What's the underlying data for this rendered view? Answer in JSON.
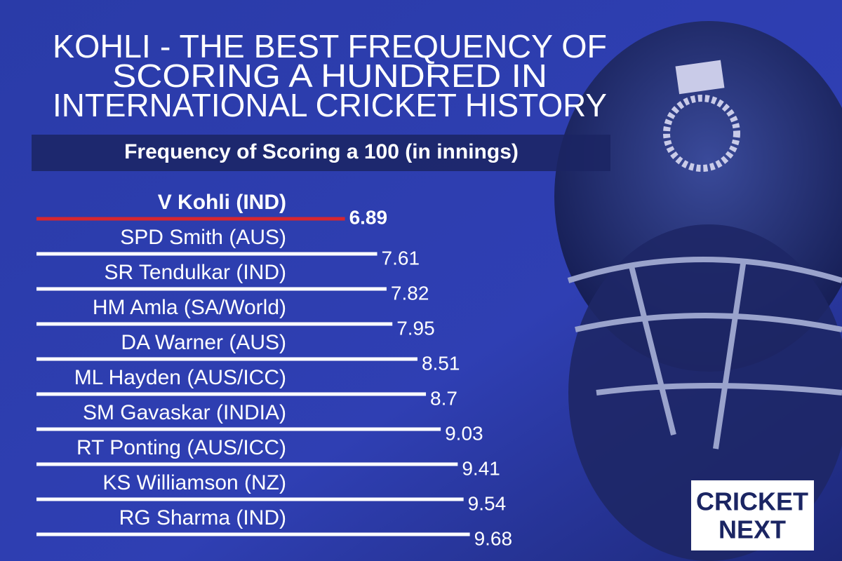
{
  "chart_data": {
    "type": "bar",
    "title": [
      "KOHLI - THE BEST FREQUENCY OF",
      "SCORING A HUNDRED IN",
      "INTERNATIONAL CRICKET HISTORY"
    ],
    "subtitle": "Frequency of  Scoring a 100 (in innings)",
    "categories": [
      "V Kohli (IND)",
      "SPD Smith (AUS)",
      "SR Tendulkar (IND)",
      "HM Amla (SA/World)",
      "DA Warner (AUS)",
      "ML Hayden (AUS/ICC)",
      "SM Gavaskar (INDIA)",
      "RT Ponting (AUS/ICC)",
      "KS Williamson (NZ)",
      "RG Sharma (IND)"
    ],
    "values": [
      6.89,
      7.61,
      7.82,
      7.95,
      8.51,
      8.7,
      9.03,
      9.41,
      9.54,
      9.68
    ],
    "colors": [
      "#d8262e",
      "#ffffff",
      "#ffffff",
      "#ffffff",
      "#ffffff",
      "#ffffff",
      "#ffffff",
      "#ffffff",
      "#ffffff",
      "#ffffff"
    ],
    "logo": [
      "CRICKET",
      "NEXT"
    ]
  }
}
